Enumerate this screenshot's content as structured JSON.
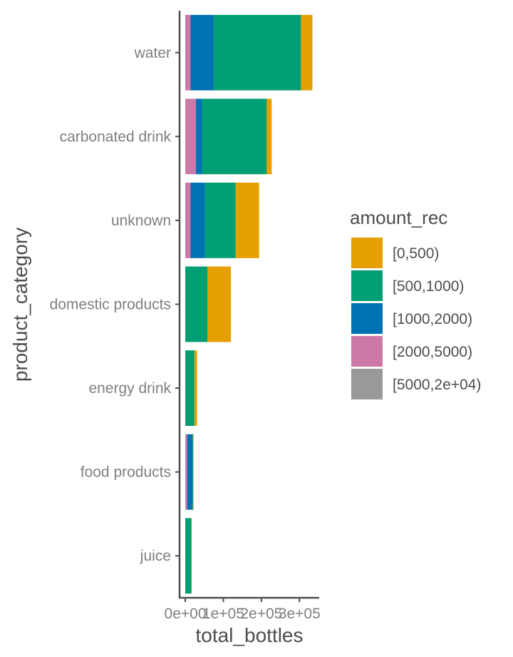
{
  "chart_data": {
    "type": "bar",
    "orientation": "horizontal",
    "stacked": true,
    "xlabel": "total_bottles",
    "ylabel": "product_category",
    "xlim": [
      -15000,
      350000
    ],
    "xticks": [
      0,
      100000,
      200000,
      300000
    ],
    "xtick_labels": [
      "0e+00",
      "1e+05",
      "2e+05",
      "3e+05"
    ],
    "categories": [
      "water",
      "carbonated drink",
      "unknown",
      "domestic products",
      "energy drink",
      "food products",
      "juice"
    ],
    "stack_order": [
      "[5000,2e+04)",
      "[2000,5000)",
      "[1000,2000)",
      "[500,1000)",
      "[0,500)"
    ],
    "series": [
      {
        "name": "[0,500)",
        "color": "#E69F00",
        "values": [
          30000,
          13000,
          62000,
          62000,
          7000,
          1000,
          1000
        ]
      },
      {
        "name": "[500,1000)",
        "color": "#009E73",
        "values": [
          229000,
          170000,
          80000,
          58000,
          24000,
          2000,
          16000
        ]
      },
      {
        "name": "[1000,2000)",
        "color": "#0072B2",
        "values": [
          61000,
          16000,
          38000,
          0,
          0,
          14000,
          0
        ]
      },
      {
        "name": "[2000,5000)",
        "color": "#CC79A7",
        "values": [
          14000,
          28000,
          14000,
          0,
          0,
          5000,
          0
        ]
      },
      {
        "name": "[5000,2e+04)",
        "color": "#999999",
        "values": [
          0,
          0,
          0,
          0,
          0,
          0,
          0
        ]
      }
    ],
    "legend": {
      "title": "amount_rec",
      "position": "right",
      "entries": [
        "[0,500)",
        "[500,1000)",
        "[1000,2000)",
        "[2000,5000)",
        "[5000,2e+04)"
      ]
    },
    "grid": false
  }
}
